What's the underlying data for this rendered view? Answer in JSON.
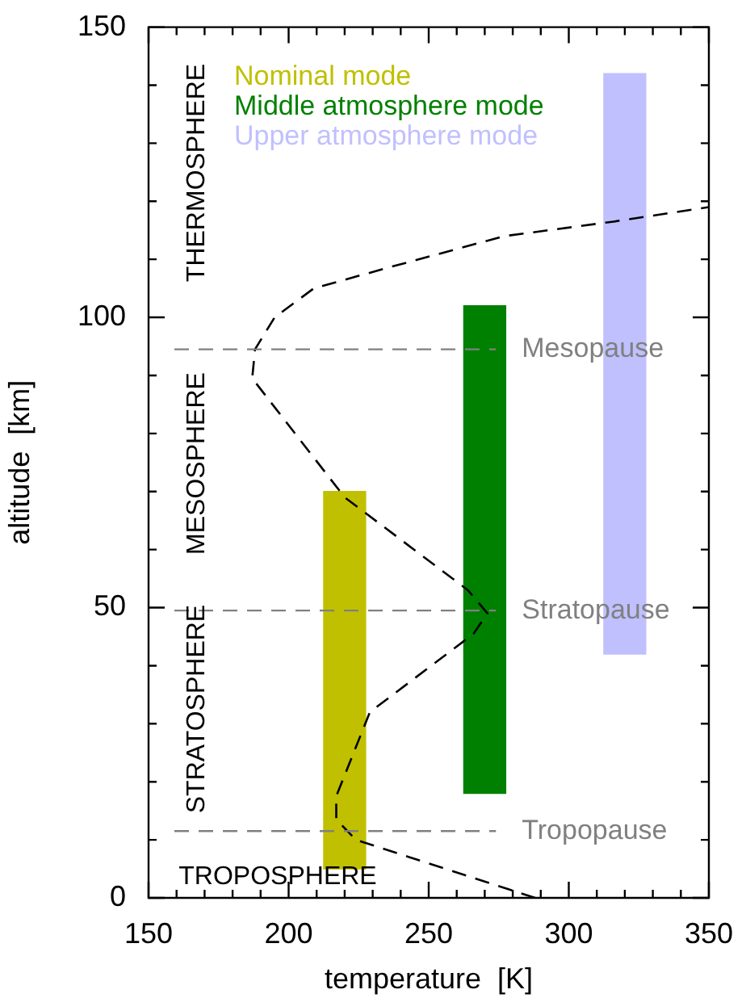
{
  "chart_data": {
    "type": "bar",
    "xlabel": "temperature  [K]",
    "ylabel": "altitude  [km]",
    "xlim": [
      150,
      350
    ],
    "ylim": [
      0,
      150
    ],
    "xticks": [
      150,
      {
        "value": 160,
        "label": null
      },
      {
        "value": 170,
        "label": null
      },
      {
        "value": 180,
        "label": null
      },
      {
        "value": 190,
        "label": null
      },
      200,
      {
        "value": 210,
        "label": null
      },
      {
        "value": 220,
        "label": null
      },
      {
        "value": 230,
        "label": null
      },
      {
        "value": 240,
        "label": null
      },
      250,
      {
        "value": 260,
        "label": null
      },
      {
        "value": 270,
        "label": null
      },
      {
        "value": 280,
        "label": null
      },
      {
        "value": 290,
        "label": null
      },
      300,
      {
        "value": 310,
        "label": null
      },
      {
        "value": 320,
        "label": null
      },
      {
        "value": 330,
        "label": null
      },
      {
        "value": 340,
        "label": null
      },
      350
    ],
    "yticks": [
      0,
      {
        "value": 10,
        "label": null
      },
      {
        "value": 20,
        "label": null
      },
      {
        "value": 30,
        "label": null
      },
      {
        "value": 40,
        "label": null
      },
      50,
      {
        "value": 60,
        "label": null
      },
      {
        "value": 70,
        "label": null
      },
      {
        "value": 80,
        "label": null
      },
      {
        "value": 90,
        "label": null
      },
      100,
      {
        "value": 110,
        "label": null
      },
      {
        "value": 120,
        "label": null
      },
      {
        "value": 130,
        "label": null
      },
      {
        "value": 140,
        "label": null
      },
      150
    ],
    "grid": false,
    "legend": "top left",
    "series": [
      {
        "name": "Nominal mode",
        "color": "#c0c000",
        "x": [
          220
        ],
        "base": [
          5
        ],
        "values": [
          65
        ]
      },
      {
        "name": "Middle atmosphere mode",
        "color": "#008000",
        "x": [
          270
        ],
        "base": [
          18
        ],
        "values": [
          84
        ]
      },
      {
        "name": "Upper atmosphere mode",
        "color": "#c0c0ff",
        "x": [
          320
        ],
        "base": [
          42
        ],
        "values": [
          100
        ]
      },
      {
        "type": "line",
        "color": "#000000",
        "line_style": "dashed",
        "marker": "none",
        "x": [
          288,
          224,
          217,
          217,
          229,
          266,
          271,
          264,
          220,
          187,
          188,
          195,
          209,
          235,
          277,
          316,
          350
        ],
        "values": [
          0,
          10,
          13.5,
          17.5,
          32,
          45.5,
          49,
          53,
          69,
          89.5,
          94.5,
          100,
          105,
          108.5,
          114,
          116.5,
          119
        ]
      }
    ],
    "ref_lines": [
      {
        "axis": "y",
        "value": 94.5,
        "label": "Mesopause",
        "color": "#808080",
        "line_style": "dashed"
      },
      {
        "axis": "y",
        "value": 49.5,
        "label": "Stratopause",
        "color": "#808080",
        "line_style": "dashed"
      },
      {
        "axis": "y",
        "value": 11.5,
        "label": "Tropopause",
        "color": "#808080",
        "line_style": "dashed"
      }
    ],
    "annotations": [
      "THERMOSPHERE",
      "MESOSPHERE",
      "STRATOSPHERE",
      "TROPOSPHERE"
    ]
  }
}
